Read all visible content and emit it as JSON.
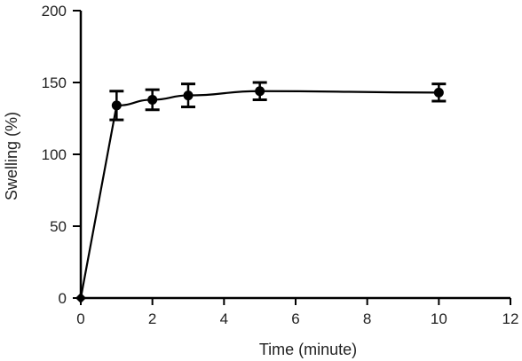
{
  "chart_data": {
    "type": "line",
    "title": "",
    "xlabel": "Time (minute)",
    "ylabel": "Swelling (%)",
    "xlim": [
      0,
      12
    ],
    "ylim": [
      0,
      200
    ],
    "xticks": [
      0,
      2,
      4,
      6,
      8,
      10,
      12
    ],
    "yticks": [
      0,
      50,
      100,
      150,
      200
    ],
    "grid": false,
    "legend": "none",
    "series": [
      {
        "x": [
          0,
          1,
          2,
          3,
          5,
          10
        ],
        "y": [
          0,
          134,
          138,
          141,
          144,
          143
        ],
        "error": [
          0,
          10,
          7,
          8,
          6,
          6
        ]
      }
    ],
    "color": "#000000"
  }
}
